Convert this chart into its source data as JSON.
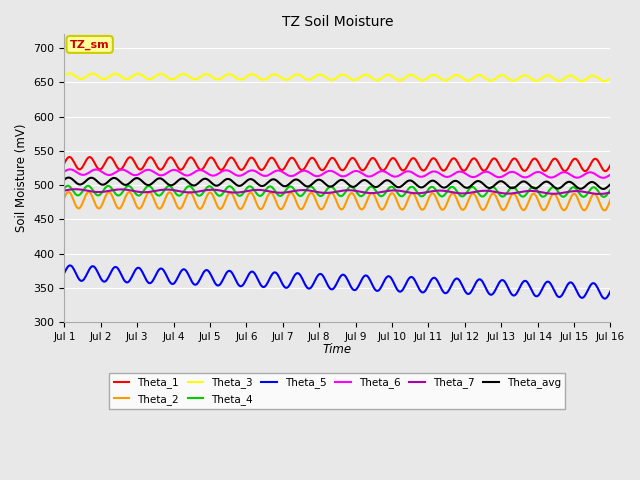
{
  "title": "TZ Soil Moisture",
  "xlabel": "Time",
  "ylabel": "Soil Moisture (mV)",
  "xlim": [
    0,
    15
  ],
  "ylim": [
    300,
    720
  ],
  "yticks": [
    300,
    350,
    400,
    450,
    500,
    550,
    600,
    650,
    700
  ],
  "xtick_labels": [
    "Jul 1",
    "Jul 2",
    "Jul 3",
    "Jul 4",
    "Jul 5",
    "Jul 6",
    "Jul 7",
    "Jul 8",
    "Jul 9",
    "Jul 10",
    "Jul 11",
    "Jul 12",
    "Jul 13",
    "Jul 14",
    "Jul 15",
    "Jul 16"
  ],
  "figure_facecolor": "#e8e8e8",
  "axes_facecolor": "#e8e8e8",
  "series": [
    {
      "name": "Theta_1",
      "color": "#ff0000",
      "base": 532,
      "amp": 9,
      "freq": 1.8,
      "trend": -0.18,
      "phase": 0.0
    },
    {
      "name": "Theta_2",
      "color": "#ff9900",
      "base": 478,
      "amp": 12,
      "freq": 1.8,
      "trend": -0.2,
      "phase": 0.3
    },
    {
      "name": "Theta_3",
      "color": "#ffff00",
      "base": 659,
      "amp": 4,
      "freq": 1.6,
      "trend": -0.22,
      "phase": 0.1
    },
    {
      "name": "Theta_4",
      "color": "#00cc00",
      "base": 492,
      "amp": 7,
      "freq": 1.8,
      "trend": -0.15,
      "phase": 0.5
    },
    {
      "name": "Theta_5",
      "color": "#0000ff",
      "base": 372,
      "amp": 11,
      "freq": 1.6,
      "trend": -1.8,
      "phase": 0.0
    },
    {
      "name": "Theta_6",
      "color": "#ff00ff",
      "base": 519,
      "amp": 4,
      "freq": 1.4,
      "trend": -0.3,
      "phase": 0.2
    },
    {
      "name": "Theta_7",
      "color": "#aa00aa",
      "base": 492,
      "amp": 2,
      "freq": 0.8,
      "trend": -0.2,
      "phase": 0.0
    },
    {
      "name": "Theta_avg",
      "color": "#000000",
      "base": 506,
      "amp": 5,
      "freq": 1.6,
      "trend": -0.45,
      "phase": 0.4
    }
  ],
  "annotation_label": "TZ_sm",
  "annotation_color": "#cc0000",
  "annotation_bg": "#ffff99",
  "annotation_border": "#cccc00",
  "legend_ncol_row1": 6,
  "legend_ncol_row2": 2
}
